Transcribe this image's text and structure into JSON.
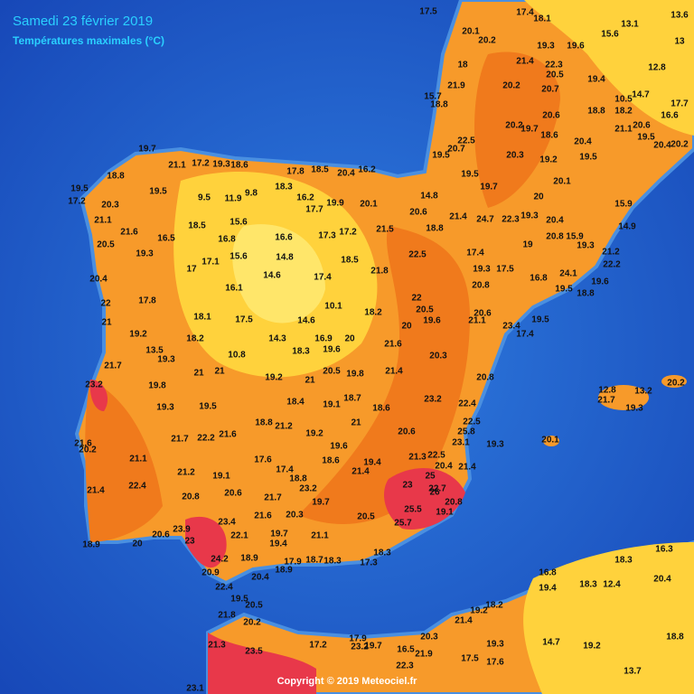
{
  "title": "Samedi 23 février 2019",
  "subtitle": "Températures maximales (°C)",
  "copyright": "Copyright © 2019 Meteociel.fr",
  "labels": [
    "19.7",
    "21.1",
    "17.2",
    "19.3",
    "18.6",
    "18.8",
    "19.5",
    "17.2",
    "20.3",
    "19.5",
    "9.5",
    "11.9",
    "9.8",
    "18.3",
    "17.8",
    "18.5",
    "20.4",
    "16.2",
    "16.2",
    "17.7",
    "19.9",
    "20.1",
    "14.8",
    "20.6",
    "21.1",
    "20.5",
    "21.6",
    "16.5",
    "18.5",
    "15.6",
    "16.8",
    "16.6",
    "17.3",
    "17.2",
    "21.5",
    "18.8",
    "21.4",
    "24.7",
    "22.3",
    "19.3",
    "19.3",
    "17.1",
    "15.6",
    "14.8",
    "18.5",
    "21.8",
    "22.5",
    "17.4",
    "19",
    "20.4",
    "17.8",
    "17",
    "16.1",
    "14.6",
    "17.4",
    "19.3",
    "17.5",
    "16.8",
    "22",
    "18.1",
    "17.5",
    "14.6",
    "10.1",
    "18.2",
    "22",
    "20.5",
    "20.8",
    "20.6",
    "21",
    "19.2",
    "18.2",
    "14.3",
    "16.9",
    "20",
    "20",
    "19.6",
    "21.1",
    "23.4",
    "19.5",
    "17.4",
    "13.5",
    "19.3",
    "10.8",
    "18.3",
    "19.6",
    "21.6",
    "20.3",
    "21.7",
    "21",
    "21",
    "19.2",
    "21",
    "20.5",
    "19.8",
    "21.4",
    "20.8",
    "23.2",
    "19.8",
    "18.4",
    "19.1",
    "18.7",
    "18.6",
    "23.2",
    "22.4",
    "19.5",
    "19.3",
    "22.5",
    "18.8",
    "21.2",
    "19.2",
    "21",
    "20.6",
    "25.8",
    "23.1",
    "19.3",
    "20.1",
    "21.6",
    "20.2",
    "21.7",
    "22.2",
    "21.6",
    "19.6",
    "21.3",
    "22.5",
    "20.4",
    "21.4",
    "21.1",
    "17.6",
    "17.4",
    "18.6",
    "19.4",
    "21.4",
    "25",
    "21.2",
    "19.1",
    "18.8",
    "23",
    "22.7",
    "26",
    "21.4",
    "22.4",
    "20.8",
    "20.6",
    "21.7",
    "23.2",
    "19.7",
    "20.8",
    "19.1",
    "25.5",
    "20.3",
    "21.6",
    "20.5",
    "23.4",
    "25.7",
    "23.9",
    "20.6",
    "22.1",
    "19.7",
    "19.4",
    "21.1",
    "23",
    "20",
    "18.9",
    "18.9",
    "18.7",
    "18.3",
    "17.3",
    "18.3",
    "17.9",
    "18.9",
    "24.2",
    "20.9",
    "20.4",
    "22.4",
    "19.5",
    "20.5",
    "21.8",
    "20.2",
    "21.3",
    "23.5",
    "17.2",
    "17.9",
    "23.2",
    "19.7",
    "16.5",
    "21.9",
    "22.3",
    "20.3",
    "21.4",
    "19.2",
    "18.2",
    "19.3",
    "17.5",
    "17.6",
    "14.7",
    "19.2",
    "13.7",
    "18.8",
    "16.8",
    "19.4",
    "18.3",
    "12.4",
    "18.3",
    "16.3",
    "20.4",
    "23.1",
    "17.4",
    "18.1",
    "17.5",
    "20.1",
    "20.2",
    "19.3",
    "19.6",
    "15.6",
    "13.1",
    "13.6",
    "13",
    "21.4",
    "22.3",
    "20.5",
    "18",
    "12.8",
    "15.7",
    "18.8",
    "21.9",
    "20.2",
    "20.7",
    "19.4",
    "10.5",
    "14.7",
    "17.7",
    "16.6",
    "18.8",
    "18.2",
    "20.6",
    "20.2",
    "19.7",
    "18.6",
    "21.1",
    "20.6",
    "19.5",
    "22.5",
    "20.7",
    "20.3",
    "20.4",
    "20.4",
    "20.2",
    "19.5",
    "19.2",
    "19.5",
    "19.5",
    "19.7",
    "20.1",
    "20",
    "15.9",
    "14.9",
    "20.4",
    "20.8",
    "15.9",
    "19.3",
    "21.2",
    "22.2",
    "24.1",
    "19.5",
    "18.8",
    "19.6",
    "21.7",
    "13.2",
    "19.3",
    "20.2",
    "12.8"
  ]
}
